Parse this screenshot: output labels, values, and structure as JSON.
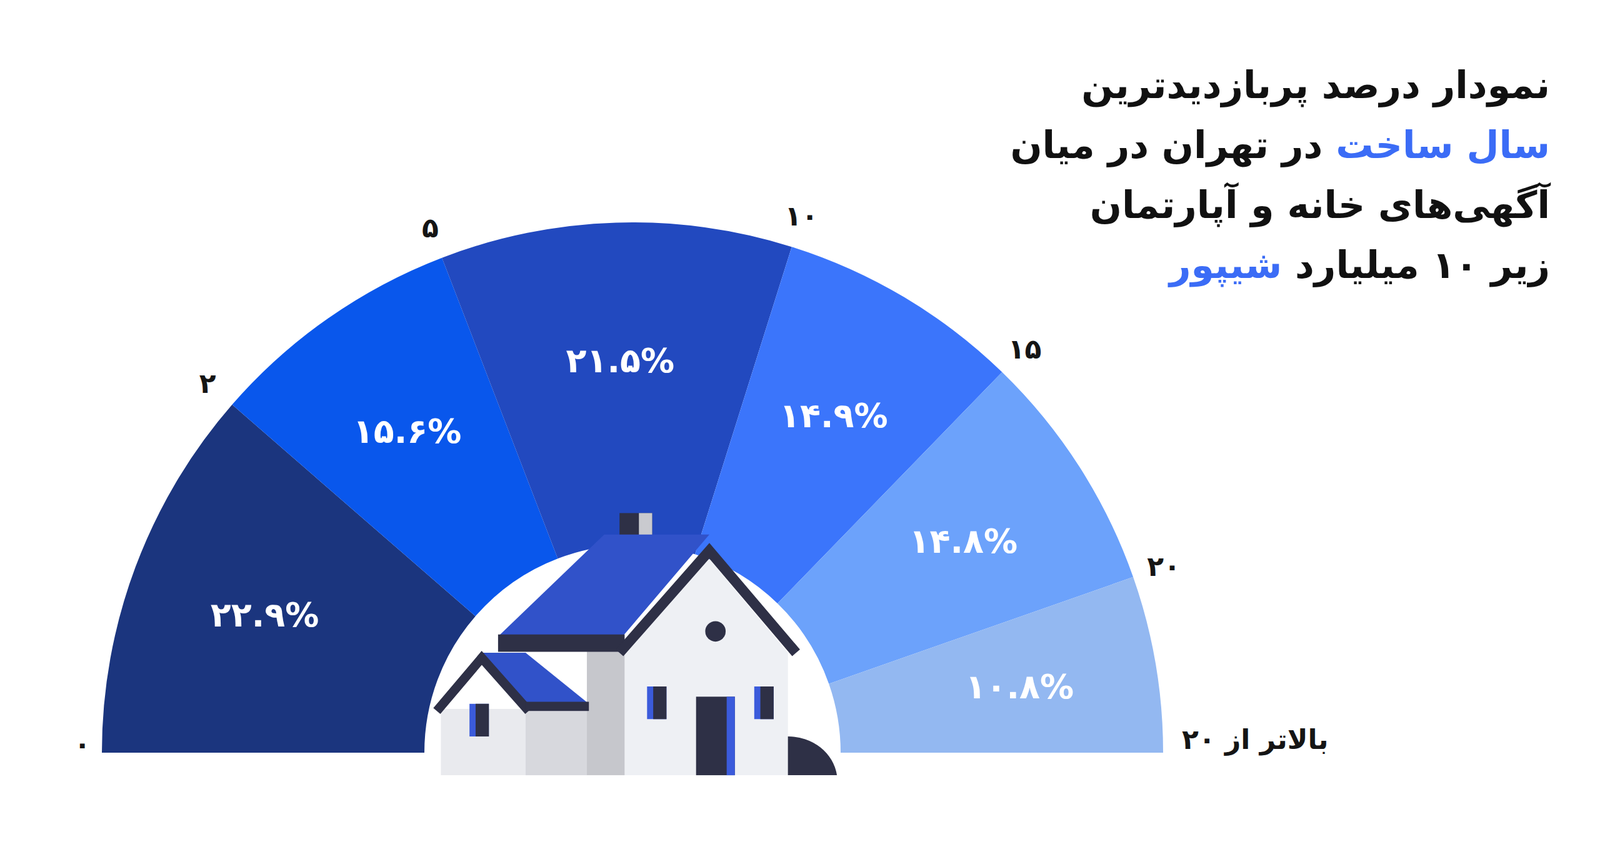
{
  "chart_data": {
    "type": "semidonut",
    "title": [
      "نمودار درصد پربازدیدترین",
      "سال ساخت در تهران در میان",
      "آگهی‌های خانه و آپارتمان",
      "زیر ۱۰ میلیارد شیپور"
    ],
    "title_highlights": [
      "سال ساخت",
      "شیپور"
    ],
    "bins": [
      "۰",
      "۲",
      "۵",
      "۱۰",
      "۱۵",
      "۲۰",
      "بالاتر از ۲۰"
    ],
    "values": [
      22.9,
      15.6,
      21.5,
      14.9,
      14.8,
      10.8
    ],
    "value_labels": [
      "۲۲.۹%",
      "۱۵.۶%",
      "۲۱.۵%",
      "۱۴.۹%",
      "۱۴.۸%",
      "۱۰.۸%"
    ],
    "colors": [
      "#1b357e",
      "#0957ec",
      "#2249bf",
      "#3b75fb",
      "#6ca2fb",
      "#93b8f1"
    ],
    "data_labels": true
  }
}
